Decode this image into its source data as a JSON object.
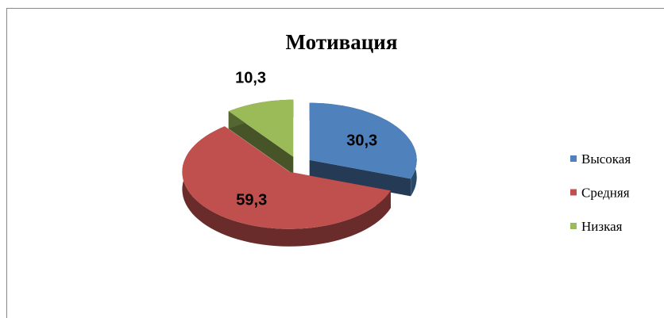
{
  "chart_data": {
    "type": "pie",
    "title": "Мотивация",
    "categories": [
      "Высокая",
      "Средняя",
      "Низкая"
    ],
    "values": [
      30.3,
      59.3,
      10.3
    ],
    "value_labels": [
      "30,3",
      "59,3",
      "10,3"
    ],
    "colors": [
      "#4f81bd",
      "#c0504d",
      "#9bbb59"
    ],
    "legend": "right"
  }
}
